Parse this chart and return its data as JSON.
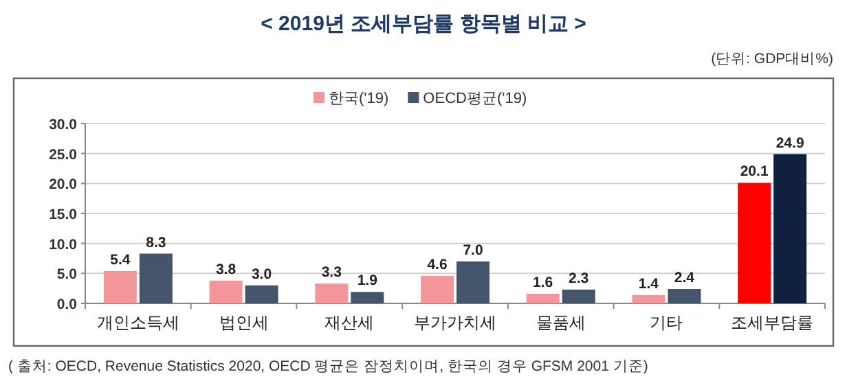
{
  "chart_data": {
    "type": "bar",
    "title": "< 2019년 조세부담률 항목별 비교 >",
    "ylabel": "(단위: GDP대비%)",
    "categories": [
      "개인소득세",
      "법인세",
      "재산세",
      "부가가치세",
      "물품세",
      "기타",
      "조세부담률"
    ],
    "series": [
      {
        "name": "한국('19)",
        "color": "#f4969a",
        "colors": [
          "#f4969a",
          "#f4969a",
          "#f4969a",
          "#f4969a",
          "#f4969a",
          "#f4969a",
          "#ff0000"
        ],
        "values": [
          5.4,
          3.8,
          3.3,
          4.6,
          1.6,
          1.4,
          20.1
        ],
        "value_labels": [
          "5.4",
          "3.8",
          "3.3",
          "4.6",
          "1.6",
          "1.4",
          "20.1"
        ]
      },
      {
        "name": "OECD평균('19)",
        "color": "#44546a",
        "colors": [
          "#44546a",
          "#44546a",
          "#44546a",
          "#44546a",
          "#44546a",
          "#44546a",
          "#10203f"
        ],
        "values": [
          8.3,
          3.0,
          1.9,
          7.0,
          2.3,
          2.4,
          24.9
        ],
        "value_labels": [
          "8.3",
          "3.0",
          "1.9",
          "7.0",
          "2.3",
          "2.4",
          "24.9"
        ]
      }
    ],
    "ylim": [
      0,
      30
    ],
    "yticks": [
      {
        "value": 0,
        "label": "0.0"
      },
      {
        "value": 5,
        "label": "5.0"
      },
      {
        "value": 10,
        "label": "10.0"
      },
      {
        "value": 15,
        "label": "15.0"
      },
      {
        "value": 20,
        "label": "20.0"
      },
      {
        "value": 25,
        "label": "25.0"
      },
      {
        "value": 30,
        "label": "30.0"
      }
    ],
    "grid": "y",
    "legend": "top",
    "annotations": [
      "( 출처: OECD, Revenue Statistics 2020, OECD 평균은 잠정치이며, 한국의 경우 GFSM 2001 기준)"
    ]
  }
}
